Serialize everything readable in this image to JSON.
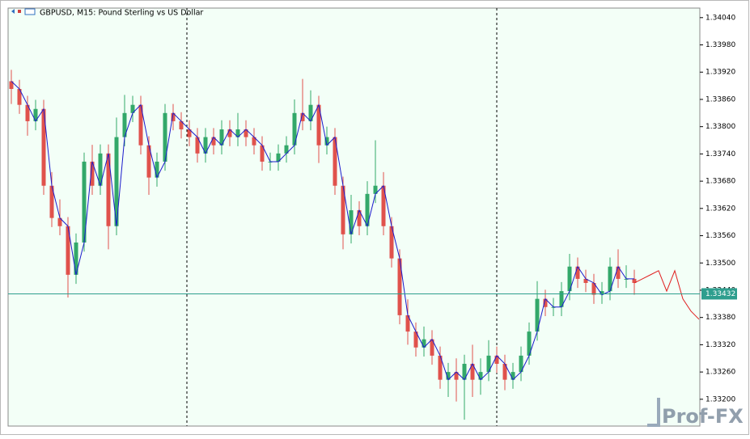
{
  "chart_data": {
    "type": "candlestick",
    "title": "GBPUSD, M15:  Pound Sterling vs US Dollar",
    "ylim": [
      1.33141,
      1.34061
    ],
    "yticks": [
      {
        "value": 1.3404,
        "label": "1.34040"
      },
      {
        "value": 1.3398,
        "label": "1.33980"
      },
      {
        "value": 1.3392,
        "label": "1.33920"
      },
      {
        "value": 1.3386,
        "label": "1.33860"
      },
      {
        "value": 1.338,
        "label": "1.33800"
      },
      {
        "value": 1.3374,
        "label": "1.33740"
      },
      {
        "value": 1.3368,
        "label": "1.33680"
      },
      {
        "value": 1.3362,
        "label": "1.33620"
      },
      {
        "value": 1.3356,
        "label": "1.33560"
      },
      {
        "value": 1.335,
        "label": "1.33500"
      },
      {
        "value": 1.3344,
        "label": "1.33440"
      },
      {
        "value": 1.3338,
        "label": "1.33380"
      },
      {
        "value": 1.3332,
        "label": "1.33320"
      },
      {
        "value": 1.3326,
        "label": "1.33260"
      },
      {
        "value": 1.332,
        "label": "1.33200"
      }
    ],
    "bull_color": "#33a86a",
    "bear_color": "#e0524c",
    "price_line": 1.33432,
    "price_line_color": "#2e9e8e",
    "open": [
      1.339,
      1.33883,
      1.33848,
      1.33812,
      1.33839,
      1.3367,
      1.33599,
      1.33581,
      1.33474,
      1.33545,
      1.33723,
      1.3367,
      1.33741,
      1.33581,
      1.33777,
      1.3383,
      1.33848,
      1.33759,
      1.33688,
      1.33723,
      1.3383,
      1.33812,
      1.33794,
      1.33777,
      1.33741,
      1.33777,
      1.33759,
      1.33794,
      1.33777,
      1.33794,
      1.33777,
      1.33759,
      1.33723,
      1.33723,
      1.33741,
      1.33759,
      1.3383,
      1.33812,
      1.33848,
      1.33759,
      1.33777,
      1.3367,
      1.33563,
      1.33616,
      1.33581,
      1.33652,
      1.3367,
      1.33581,
      1.3351,
      1.33385,
      1.33349,
      1.33314,
      1.33332,
      1.33296,
      1.33243,
      1.3326,
      1.33243,
      1.33278,
      1.33243,
      1.3326,
      1.33296,
      1.33278,
      1.33243,
      1.3326,
      1.33296,
      1.33349,
      1.33421,
      1.33403,
      1.33403,
      1.33438,
      1.33492,
      1.33465,
      1.33456,
      1.3343,
      1.33438,
      1.33492,
      1.33465,
      1.33465
    ],
    "high": [
      1.33925,
      1.33903,
      1.33868,
      1.33859,
      1.33859,
      1.337,
      1.3364,
      1.33601,
      1.33565,
      1.33743,
      1.3376,
      1.33761,
      1.33761,
      1.3382,
      1.3387,
      1.33868,
      1.33868,
      1.33779,
      1.33743,
      1.3385,
      1.3385,
      1.33832,
      1.33814,
      1.33797,
      1.33797,
      1.33797,
      1.33814,
      1.33814,
      1.3383,
      1.33814,
      1.33797,
      1.33779,
      1.33743,
      1.33761,
      1.33779,
      1.3386,
      1.33905,
      1.3388,
      1.33868,
      1.338,
      1.33797,
      1.3369,
      1.3365,
      1.33636,
      1.3368,
      1.3377,
      1.337,
      1.33601,
      1.3353,
      1.3342,
      1.33369,
      1.3336,
      1.33352,
      1.33316,
      1.3328,
      1.3329,
      1.33298,
      1.3332,
      1.3329,
      1.3333,
      1.33316,
      1.33298,
      1.3328,
      1.33316,
      1.33369,
      1.3346,
      1.33441,
      1.33423,
      1.33458,
      1.3352,
      1.33512,
      1.33485,
      1.33476,
      1.33458,
      1.33512,
      1.3353,
      1.33495,
      1.33485
    ],
    "low": [
      1.3385,
      1.33828,
      1.3378,
      1.33792,
      1.3365,
      1.33579,
      1.33561,
      1.33424,
      1.33454,
      1.33525,
      1.3365,
      1.3365,
      1.3353,
      1.33561,
      1.33757,
      1.3381,
      1.33739,
      1.3365,
      1.33668,
      1.33703,
      1.33792,
      1.33774,
      1.33757,
      1.33721,
      1.33721,
      1.33739,
      1.33739,
      1.33757,
      1.33757,
      1.33757,
      1.33739,
      1.33703,
      1.33703,
      1.33703,
      1.33721,
      1.33739,
      1.33792,
      1.33792,
      1.3372,
      1.33739,
      1.3365,
      1.3353,
      1.33543,
      1.33561,
      1.33561,
      1.33632,
      1.33561,
      1.3349,
      1.33365,
      1.3332,
      1.33294,
      1.33294,
      1.33276,
      1.33223,
      1.33205,
      1.33195,
      1.33155,
      1.33205,
      1.3321,
      1.3324,
      1.33258,
      1.3322,
      1.33223,
      1.3324,
      1.33276,
      1.33329,
      1.33383,
      1.33383,
      1.33383,
      1.33418,
      1.33445,
      1.33436,
      1.3341,
      1.3341,
      1.33418,
      1.33445,
      1.33445,
      1.3343
    ],
    "close": [
      1.33883,
      1.33848,
      1.33812,
      1.33839,
      1.3367,
      1.33599,
      1.33581,
      1.33474,
      1.33545,
      1.33723,
      1.3367,
      1.33741,
      1.33581,
      1.33777,
      1.3383,
      1.33848,
      1.33759,
      1.33688,
      1.33723,
      1.3383,
      1.33812,
      1.33794,
      1.33777,
      1.33741,
      1.33777,
      1.33759,
      1.33794,
      1.33777,
      1.33794,
      1.33777,
      1.33759,
      1.33723,
      1.33723,
      1.33741,
      1.33759,
      1.3383,
      1.33812,
      1.33848,
      1.33759,
      1.33777,
      1.3367,
      1.33563,
      1.33616,
      1.33581,
      1.33652,
      1.3367,
      1.33581,
      1.3351,
      1.33385,
      1.33349,
      1.33314,
      1.33332,
      1.33296,
      1.33243,
      1.3326,
      1.33243,
      1.33278,
      1.33243,
      1.3326,
      1.33296,
      1.33278,
      1.33243,
      1.3326,
      1.33296,
      1.33349,
      1.33421,
      1.33403,
      1.33403,
      1.33438,
      1.33492,
      1.33465,
      1.33456,
      1.3343,
      1.33438,
      1.33492,
      1.33465,
      1.33465,
      1.33456
    ],
    "series": [
      {
        "color": "#1a1acc",
        "values": [
          1.339,
          1.33883,
          1.33848,
          1.33812,
          1.33839,
          1.3367,
          1.33599,
          1.33581,
          1.33474,
          1.33545,
          1.33723,
          1.3367,
          1.33741,
          1.33581,
          1.33777,
          1.3383,
          1.33848,
          1.33759,
          1.33688,
          1.33723,
          1.3383,
          1.33812,
          1.33794,
          1.33777,
          1.33741,
          1.33777,
          1.33759,
          1.33794,
          1.33777,
          1.33794,
          1.33777,
          1.33759,
          1.33723,
          1.33723,
          1.33741,
          1.33759,
          1.3383,
          1.33812,
          1.33848,
          1.33759,
          1.33777,
          1.3367,
          1.33563,
          1.33616,
          1.33581,
          1.33652,
          1.3367,
          1.33581,
          1.3351,
          1.33385,
          1.33349,
          1.33314,
          1.33332,
          1.33296,
          1.33243,
          1.3326,
          1.33243,
          1.33278,
          1.33243,
          1.3326,
          1.33296,
          1.33278,
          1.33243,
          1.3326,
          1.33296,
          1.33349,
          1.33421,
          1.33403,
          1.33403,
          1.33438,
          1.33492,
          1.33465,
          1.33456,
          1.3343,
          1.33438,
          1.33492,
          1.33465,
          1.33465
        ]
      },
      {
        "color": "#e02020",
        "values": [
          null,
          null,
          null,
          null,
          null,
          null,
          null,
          null,
          null,
          null,
          null,
          null,
          null,
          null,
          null,
          null,
          null,
          null,
          null,
          null,
          null,
          null,
          null,
          null,
          null,
          null,
          null,
          null,
          null,
          null,
          null,
          null,
          null,
          null,
          null,
          null,
          null,
          null,
          null,
          null,
          null,
          null,
          null,
          null,
          null,
          null,
          null,
          null,
          null,
          null,
          null,
          null,
          null,
          null,
          null,
          null,
          null,
          null,
          null,
          null,
          null,
          null,
          null,
          null,
          null,
          null,
          null,
          null,
          null,
          null,
          null,
          null,
          null,
          null,
          null,
          null,
          null,
          1.33456,
          1.33465,
          1.33474,
          1.33483,
          1.33438,
          1.33483,
          1.33421,
          1.33394,
          1.33376
        ]
      }
    ],
    "watermark": "Prof-FX"
  }
}
